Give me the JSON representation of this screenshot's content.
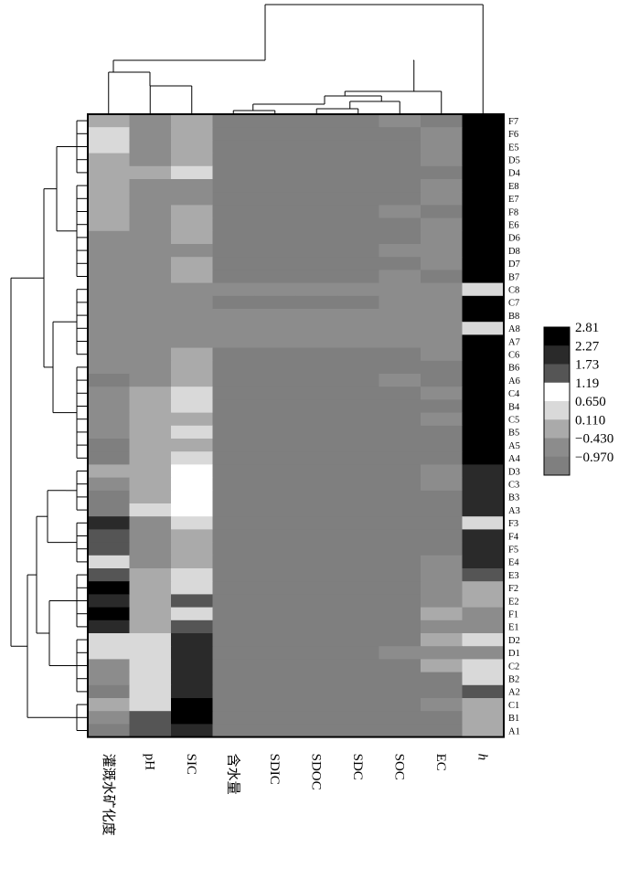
{
  "chart_data": {
    "type": "heatmap",
    "title": "",
    "columns": [
      "灌溉水矿化度",
      "pH",
      "SIC",
      "含水量",
      "SDIC",
      "SDOC",
      "SDC",
      "SOC",
      "EC",
      "h"
    ],
    "rows": [
      "F7",
      "F6",
      "E5",
      "D5",
      "D4",
      "E8",
      "E7",
      "F8",
      "E6",
      "D6",
      "D8",
      "D7",
      "B7",
      "C8",
      "C7",
      "B8",
      "A8",
      "A7",
      "C6",
      "B6",
      "A6",
      "C4",
      "B4",
      "C5",
      "B5",
      "A5",
      "A4",
      "D3",
      "C3",
      "B3",
      "A3",
      "F3",
      "F4",
      "F5",
      "E4",
      "E3",
      "F2",
      "E2",
      "F1",
      "E1",
      "D2",
      "D1",
      "C2",
      "B2",
      "A2",
      "C1",
      "B1",
      "A1"
    ],
    "values": [
      [
        0.11,
        -0.43,
        0.11,
        -0.97,
        -0.97,
        -0.97,
        -0.97,
        -0.43,
        -0.97,
        2.81
      ],
      [
        0.65,
        -0.43,
        0.11,
        -0.97,
        -0.97,
        -0.97,
        -0.97,
        -0.97,
        -0.43,
        2.81
      ],
      [
        0.65,
        -0.43,
        0.11,
        -0.97,
        -0.97,
        -0.97,
        -0.97,
        -0.97,
        -0.43,
        2.81
      ],
      [
        0.11,
        -0.43,
        0.11,
        -0.97,
        -0.97,
        -0.97,
        -0.97,
        -0.97,
        -0.43,
        2.81
      ],
      [
        0.11,
        0.11,
        0.65,
        -0.97,
        -0.97,
        -0.97,
        -0.97,
        -0.97,
        -0.97,
        2.81
      ],
      [
        0.11,
        -0.43,
        -0.43,
        -0.97,
        -0.97,
        -0.97,
        -0.97,
        -0.97,
        -0.43,
        2.81
      ],
      [
        0.11,
        -0.43,
        -0.43,
        -0.97,
        -0.97,
        -0.97,
        -0.97,
        -0.97,
        -0.43,
        2.81
      ],
      [
        0.11,
        -0.43,
        0.11,
        -0.97,
        -0.97,
        -0.97,
        -0.97,
        -0.43,
        -0.97,
        2.81
      ],
      [
        0.11,
        -0.43,
        0.11,
        -0.97,
        -0.97,
        -0.97,
        -0.97,
        -0.97,
        -0.43,
        2.81
      ],
      [
        -0.43,
        -0.43,
        0.11,
        -0.97,
        -0.97,
        -0.97,
        -0.97,
        -0.97,
        -0.43,
        2.81
      ],
      [
        -0.43,
        -0.43,
        -0.43,
        -0.97,
        -0.97,
        -0.97,
        -0.97,
        -0.43,
        -0.43,
        2.81
      ],
      [
        -0.43,
        -0.43,
        0.11,
        -0.97,
        -0.97,
        -0.97,
        -0.97,
        -0.97,
        -0.43,
        2.81
      ],
      [
        -0.43,
        -0.43,
        0.11,
        -0.97,
        -0.97,
        -0.97,
        -0.97,
        -0.43,
        -0.97,
        2.81
      ],
      [
        -0.43,
        -0.43,
        -0.43,
        -0.43,
        -0.43,
        -0.43,
        -0.43,
        -0.43,
        -0.43,
        0.65
      ],
      [
        -0.43,
        -0.43,
        -0.43,
        -0.97,
        -0.97,
        -0.97,
        -0.97,
        -0.43,
        -0.43,
        2.81
      ],
      [
        -0.43,
        -0.43,
        -0.43,
        -0.43,
        -0.43,
        -0.43,
        -0.43,
        -0.43,
        -0.43,
        2.81
      ],
      [
        -0.43,
        -0.43,
        -0.43,
        -0.43,
        -0.43,
        -0.43,
        -0.43,
        -0.43,
        -0.43,
        0.65
      ],
      [
        -0.43,
        -0.43,
        -0.43,
        -0.43,
        -0.43,
        -0.43,
        -0.43,
        -0.43,
        -0.43,
        2.81
      ],
      [
        -0.43,
        -0.43,
        0.11,
        -0.97,
        -0.97,
        -0.97,
        -0.97,
        -0.97,
        -0.43,
        2.81
      ],
      [
        -0.43,
        -0.43,
        0.11,
        -0.97,
        -0.97,
        -0.97,
        -0.97,
        -0.97,
        -0.97,
        2.81
      ],
      [
        -0.97,
        -0.43,
        0.11,
        -0.97,
        -0.97,
        -0.97,
        -0.97,
        -0.43,
        -0.97,
        2.81
      ],
      [
        -0.43,
        0.11,
        0.65,
        -0.97,
        -0.97,
        -0.97,
        -0.97,
        -0.97,
        -0.43,
        2.81
      ],
      [
        -0.43,
        0.11,
        0.65,
        -0.97,
        -0.97,
        -0.97,
        -0.97,
        -0.97,
        -0.97,
        2.81
      ],
      [
        -0.43,
        0.11,
        0.11,
        -0.97,
        -0.97,
        -0.97,
        -0.97,
        -0.97,
        -0.43,
        2.81
      ],
      [
        -0.43,
        0.11,
        0.65,
        -0.97,
        -0.97,
        -0.97,
        -0.97,
        -0.97,
        -0.97,
        2.81
      ],
      [
        -0.97,
        0.11,
        0.11,
        -0.97,
        -0.97,
        -0.97,
        -0.97,
        -0.97,
        -0.97,
        2.81
      ],
      [
        -0.97,
        0.11,
        0.65,
        -0.97,
        -0.97,
        -0.97,
        -0.97,
        -0.97,
        -0.97,
        2.81
      ],
      [
        0.11,
        0.11,
        1.19,
        -0.97,
        -0.97,
        -0.97,
        -0.97,
        -0.97,
        -0.43,
        2.27
      ],
      [
        -0.43,
        0.11,
        1.19,
        -0.97,
        -0.97,
        -0.97,
        -0.97,
        -0.97,
        -0.43,
        2.27
      ],
      [
        -0.97,
        0.11,
        1.19,
        -0.97,
        -0.97,
        -0.97,
        -0.97,
        -0.97,
        -0.97,
        2.27
      ],
      [
        -0.97,
        0.65,
        1.19,
        -0.97,
        -0.97,
        -0.97,
        -0.97,
        -0.97,
        -0.97,
        2.27
      ],
      [
        2.27,
        -0.43,
        0.65,
        -0.97,
        -0.97,
        -0.97,
        -0.97,
        -0.97,
        -0.97,
        0.65
      ],
      [
        1.73,
        -0.43,
        0.11,
        -0.97,
        -0.97,
        -0.97,
        -0.97,
        -0.97,
        -0.97,
        2.27
      ],
      [
        1.73,
        -0.43,
        0.11,
        -0.97,
        -0.97,
        -0.97,
        -0.97,
        -0.97,
        -0.97,
        2.27
      ],
      [
        0.65,
        -0.43,
        0.11,
        -0.97,
        -0.97,
        -0.97,
        -0.97,
        -0.97,
        -0.43,
        2.27
      ],
      [
        1.73,
        0.11,
        0.65,
        -0.97,
        -0.97,
        -0.97,
        -0.97,
        -0.97,
        -0.43,
        1.73
      ],
      [
        2.81,
        0.11,
        0.65,
        -0.97,
        -0.97,
        -0.97,
        -0.97,
        -0.97,
        -0.43,
        0.11
      ],
      [
        2.27,
        0.11,
        1.73,
        -0.97,
        -0.97,
        -0.97,
        -0.97,
        -0.97,
        -0.43,
        0.11
      ],
      [
        2.81,
        0.11,
        0.65,
        -0.97,
        -0.97,
        -0.97,
        -0.97,
        -0.97,
        0.11,
        -0.43
      ],
      [
        2.27,
        0.11,
        1.73,
        -0.97,
        -0.97,
        -0.97,
        -0.97,
        -0.97,
        -0.43,
        -0.43
      ],
      [
        0.65,
        0.65,
        2.27,
        -0.97,
        -0.97,
        -0.97,
        -0.97,
        -0.97,
        0.11,
        0.65
      ],
      [
        0.65,
        0.65,
        2.27,
        -0.97,
        -0.97,
        -0.97,
        -0.97,
        -0.43,
        -0.43,
        -0.43
      ],
      [
        -0.43,
        0.65,
        2.27,
        -0.97,
        -0.97,
        -0.97,
        -0.97,
        -0.97,
        0.11,
        0.65
      ],
      [
        -0.43,
        0.65,
        2.27,
        -0.97,
        -0.97,
        -0.97,
        -0.97,
        -0.97,
        -0.97,
        0.65
      ],
      [
        -0.97,
        0.65,
        2.27,
        -0.97,
        -0.97,
        -0.97,
        -0.97,
        -0.97,
        -0.97,
        1.73
      ],
      [
        0.11,
        0.65,
        2.81,
        -0.97,
        -0.97,
        -0.97,
        -0.97,
        -0.97,
        -0.43,
        0.11
      ],
      [
        -0.43,
        1.73,
        2.81,
        -0.97,
        -0.97,
        -0.97,
        -0.97,
        -0.97,
        -0.97,
        0.11
      ],
      [
        -0.97,
        1.73,
        2.27,
        -0.97,
        -0.97,
        -0.97,
        -0.97,
        -0.97,
        -0.97,
        0.11
      ]
    ],
    "legend": {
      "ticks": [
        "2.81",
        "2.27",
        "1.73",
        "1.19",
        "0.650",
        "0.110",
        "−0.430",
        "−0.970"
      ],
      "levels": [
        2.81,
        2.27,
        1.73,
        1.19,
        0.65,
        0.11,
        -0.43,
        -0.97
      ],
      "colors": [
        "#000000",
        "#2a2a2a",
        "#555555",
        "#ffffff",
        "#d9d9d9",
        "#aaaaaa",
        "#8c8c8c",
        "#7f7f7f"
      ],
      "position": "right"
    },
    "row_dendrogram": "left",
    "column_dendrogram": "top",
    "grid": false
  }
}
